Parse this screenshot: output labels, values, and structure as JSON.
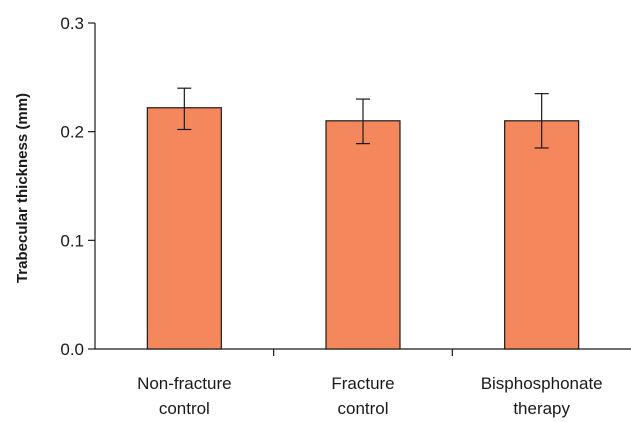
{
  "chart_data": {
    "type": "bar",
    "title": "",
    "xlabel": "",
    "ylabel": "Trabecular thickness (mm)",
    "ylim": [
      0,
      0.3
    ],
    "yticks": [
      0.0,
      0.1,
      0.2,
      0.3
    ],
    "ytick_labels": [
      "0.0",
      "0.1",
      "0.2",
      "0.3"
    ],
    "categories": [
      [
        "Non-fracture",
        "control"
      ],
      [
        "Fracture",
        "control"
      ],
      [
        "Bisphosphonate",
        "therapy"
      ]
    ],
    "values": [
      0.222,
      0.21,
      0.21
    ],
    "error_low": [
      0.202,
      0.189,
      0.185
    ],
    "error_high": [
      0.24,
      0.23,
      0.235
    ],
    "grid": false,
    "bar_color": "#f4875c",
    "bar_edge_color": "#1a1a1a"
  }
}
